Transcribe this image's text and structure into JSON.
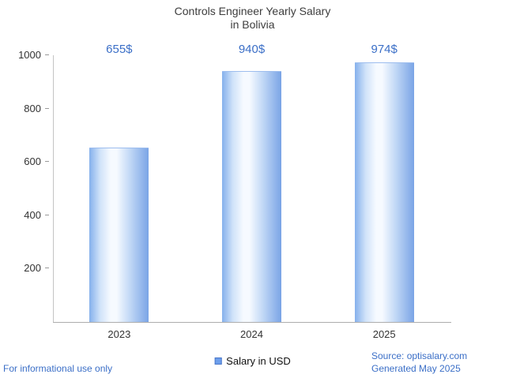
{
  "title": {
    "line1": "Controls Engineer Yearly Salary",
    "line2": "in Bolivia"
  },
  "chart_data": {
    "type": "bar",
    "title": "Controls Engineer Yearly Salary in Bolivia",
    "categories": [
      "2023",
      "2024",
      "2025"
    ],
    "values": [
      655,
      940,
      974
    ],
    "value_labels": [
      "655$",
      "940$",
      "974$"
    ],
    "series_name": "Salary in USD",
    "xlabel": "",
    "ylabel": "",
    "ylim": [
      0,
      1000
    ],
    "yticks": [
      200,
      400,
      600,
      800,
      1000
    ],
    "grid": false,
    "legend_position": "bottom"
  },
  "legend": {
    "label": "Salary in USD"
  },
  "footer": {
    "left": "For informational use only",
    "source": "Source: optisalary.com",
    "generated": "Generated May 2025"
  },
  "colors": {
    "accent_text": "#3b6fc7",
    "tick_text": "#333333",
    "title_text": "#3d3d3d",
    "axis_line": "#c4c4c4",
    "bar_left": "#85b0ec",
    "bar_light": "#f6faff",
    "bar_right": "#7aa4e6",
    "legend_swatch": "#6d9eeb",
    "legend_border": "#4a77c9"
  }
}
